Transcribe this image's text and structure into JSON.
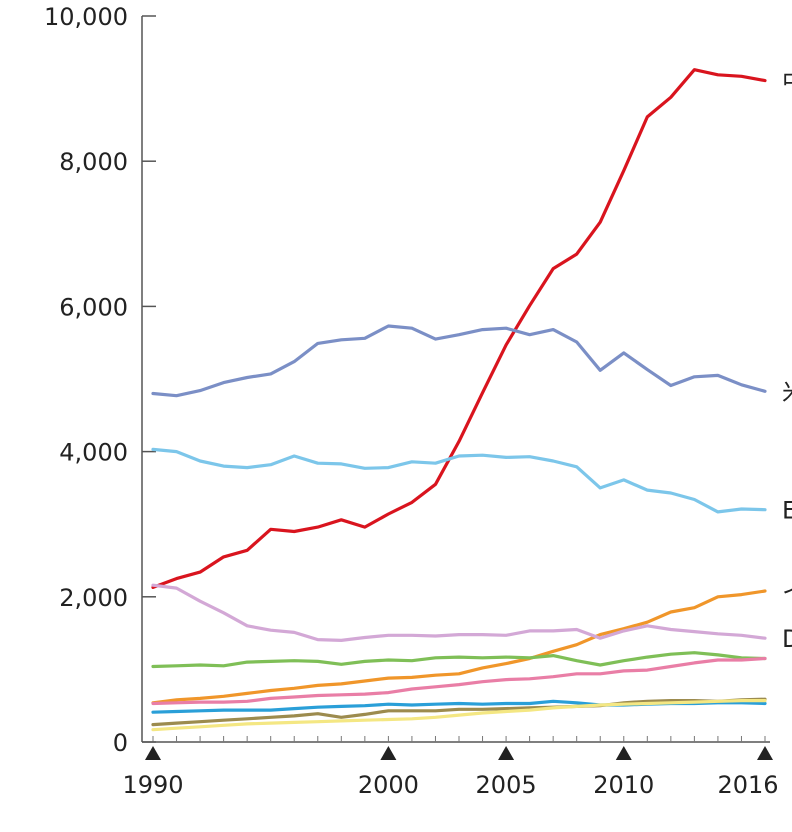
{
  "chart_data": {
    "type": "line",
    "title": "",
    "xlabel": "",
    "ylabel": "",
    "xlim": [
      1990,
      2016
    ],
    "ylim": [
      0,
      10000
    ],
    "y_ticks": [
      0,
      2000,
      4000,
      6000,
      8000,
      10000
    ],
    "y_tick_labels": [
      "0",
      "2,000",
      "4,000",
      "6,000",
      "8,000",
      "10,000"
    ],
    "x_tick_labels": [
      {
        "x": 1990,
        "label": "1990"
      },
      {
        "x": 2000,
        "label": "2000"
      },
      {
        "x": 2005,
        "label": "2005"
      },
      {
        "x": 2010,
        "label": "2010"
      },
      {
        "x": 2016,
        "label": "2016"
      }
    ],
    "x_markers": [
      1990,
      2000,
      2005,
      2010,
      2016
    ],
    "grid": false,
    "legend": "none",
    "x": [
      1990,
      1991,
      1992,
      1993,
      1994,
      1995,
      1996,
      1997,
      1998,
      1999,
      2000,
      2001,
      2002,
      2003,
      2004,
      2005,
      2006,
      2007,
      2008,
      2009,
      2010,
      2011,
      2012,
      2013,
      2014,
      2015,
      2016
    ],
    "series": [
      {
        "color": "#d9141e",
        "edge_label": "中",
        "values": [
          2130,
          2250,
          2340,
          2550,
          2640,
          2930,
          2900,
          2960,
          3060,
          2960,
          3140,
          3300,
          3550,
          4140,
          4810,
          5470,
          6010,
          6520,
          6720,
          7160,
          7870,
          8610,
          8880,
          9260,
          9190,
          9170,
          9110
        ]
      },
      {
        "color": "#7b8fc6",
        "edge_label": "米",
        "values": [
          4800,
          4770,
          4840,
          4950,
          5020,
          5070,
          5240,
          5490,
          5540,
          5560,
          5730,
          5700,
          5550,
          5610,
          5680,
          5700,
          5610,
          5680,
          5510,
          5120,
          5360,
          5130,
          4910,
          5030,
          5050,
          4920,
          4830
        ]
      },
      {
        "color": "#7cc6ea",
        "edge_label": "E",
        "values": [
          4030,
          4000,
          3870,
          3800,
          3780,
          3820,
          3940,
          3840,
          3830,
          3770,
          3780,
          3860,
          3840,
          3940,
          3950,
          3920,
          3930,
          3870,
          3790,
          3500,
          3610,
          3470,
          3430,
          3340,
          3170,
          3210,
          3200
        ]
      },
      {
        "color": "#f0962a",
        "edge_label": "イ",
        "values": [
          540,
          580,
          600,
          630,
          670,
          710,
          740,
          780,
          800,
          840,
          880,
          890,
          920,
          940,
          1020,
          1080,
          1150,
          1250,
          1340,
          1480,
          1560,
          1650,
          1790,
          1850,
          2000,
          2030,
          2080
        ]
      },
      {
        "color": "#d3a8d6",
        "edge_label": "D",
        "values": [
          2160,
          2120,
          1940,
          1780,
          1600,
          1540,
          1510,
          1410,
          1400,
          1440,
          1470,
          1470,
          1460,
          1480,
          1480,
          1470,
          1530,
          1530,
          1550,
          1430,
          1530,
          1600,
          1550,
          1520,
          1490,
          1470,
          1430
        ]
      },
      {
        "color": "#7fbf57",
        "values": [
          1040,
          1050,
          1060,
          1050,
          1100,
          1110,
          1120,
          1110,
          1070,
          1110,
          1130,
          1120,
          1160,
          1170,
          1160,
          1170,
          1160,
          1190,
          1120,
          1060,
          1120,
          1170,
          1210,
          1230,
          1200,
          1160,
          1150
        ]
      },
      {
        "color": "#e97ea6",
        "values": [
          530,
          540,
          550,
          550,
          560,
          600,
          620,
          640,
          650,
          660,
          680,
          730,
          760,
          790,
          830,
          860,
          870,
          900,
          940,
          940,
          980,
          990,
          1040,
          1090,
          1130,
          1130,
          1150
        ]
      },
      {
        "color": "#2a9fd8",
        "values": [
          410,
          420,
          430,
          440,
          440,
          440,
          460,
          480,
          490,
          500,
          520,
          510,
          520,
          530,
          520,
          530,
          530,
          560,
          540,
          510,
          510,
          520,
          530,
          530,
          540,
          540,
          530
        ]
      },
      {
        "color": "#9c8b4e",
        "values": [
          240,
          260,
          280,
          300,
          320,
          340,
          360,
          390,
          340,
          380,
          430,
          430,
          430,
          450,
          450,
          460,
          470,
          480,
          490,
          500,
          540,
          560,
          570,
          570,
          560,
          580,
          590
        ]
      },
      {
        "color": "#f4e783",
        "values": [
          170,
          190,
          210,
          230,
          250,
          260,
          270,
          280,
          290,
          300,
          310,
          320,
          340,
          370,
          400,
          420,
          440,
          470,
          490,
          510,
          520,
          530,
          540,
          550,
          560,
          570,
          570
        ]
      }
    ]
  }
}
